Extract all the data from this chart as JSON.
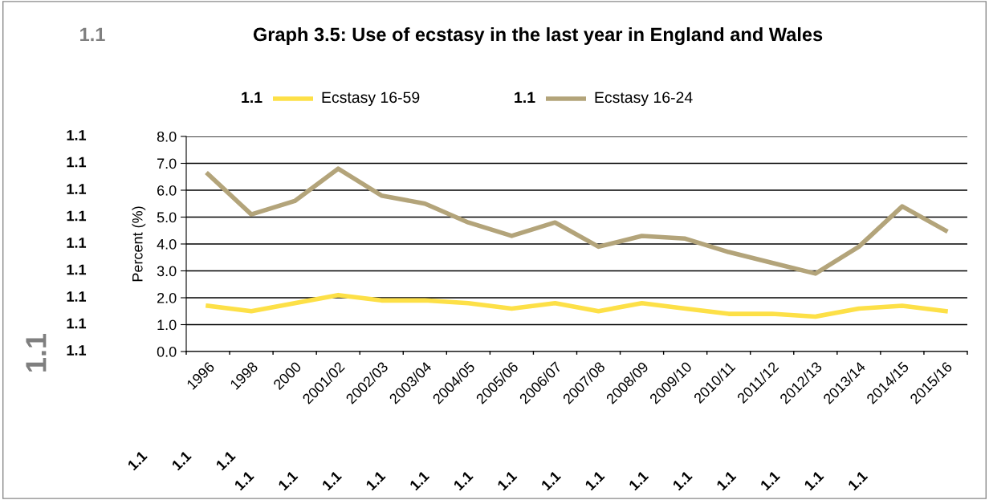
{
  "chart_data": {
    "type": "line",
    "title": "Graph 3.5: Use of ecstasy in the last year in England and Wales",
    "ylabel": "Percent (%)",
    "categories": [
      "1996",
      "1998",
      "2000",
      "2001/02",
      "2002/03",
      "2003/04",
      "2004/05",
      "2005/06",
      "2006/07",
      "2007/08",
      "2008/09",
      "2009/10",
      "2010/11",
      "2011/12",
      "2012/13",
      "2013/14",
      "2014/15",
      "2015/16"
    ],
    "series": [
      {
        "name": "Ecstasy 16-59",
        "color": "#fde047",
        "values": [
          1.7,
          1.5,
          1.8,
          2.1,
          1.9,
          1.9,
          1.8,
          1.6,
          1.8,
          1.5,
          1.8,
          1.6,
          1.4,
          1.4,
          1.3,
          1.6,
          1.7,
          1.5
        ]
      },
      {
        "name": "Ecstasy 16-24",
        "color": "#b3a47a",
        "values": [
          6.6,
          5.1,
          5.6,
          6.8,
          5.8,
          5.5,
          4.8,
          4.3,
          4.8,
          3.9,
          4.3,
          4.2,
          3.7,
          3.3,
          2.9,
          3.9,
          5.4,
          4.5
        ]
      }
    ],
    "ylim": [
      0,
      8
    ],
    "yticks": [
      {
        "value": 0,
        "label": "0.0"
      },
      {
        "value": 1,
        "label": "1.0"
      },
      {
        "value": 2,
        "label": "2.0"
      },
      {
        "value": 3,
        "label": "3.0"
      },
      {
        "value": 4,
        "label": "4.0"
      },
      {
        "value": 5,
        "label": "5.0"
      },
      {
        "value": 6,
        "label": "6.0"
      },
      {
        "value": 7,
        "label": "7.0"
      },
      {
        "value": 8,
        "label": "8.0"
      }
    ],
    "grid": "y",
    "legend": "top",
    "marker": "none",
    "line_style": "solid",
    "annotations": [
      "1.1",
      "1.1",
      "1.1",
      "1.1",
      "1.1",
      "1.1",
      "1.1",
      "1.1",
      "1.1",
      "1.1",
      "1.1",
      "1.1",
      "1.1",
      "1.1",
      "1.1",
      "1.1",
      "1.1",
      "1.1",
      "1.1",
      "1.1",
      "1.1",
      "1.1",
      "1.1",
      "1.1",
      "1.1",
      "1.1",
      "1.1",
      "1.1",
      "1.1",
      "1.1",
      "1.1"
    ]
  }
}
